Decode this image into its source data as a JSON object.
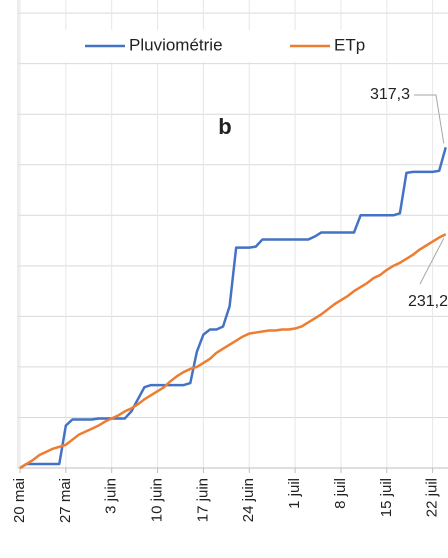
{
  "chart_data": {
    "type": "line",
    "panel_label": "b",
    "categories": [
      "20 mai",
      null,
      null,
      null,
      null,
      null,
      null,
      "27 mai",
      null,
      null,
      null,
      null,
      null,
      null,
      "3 juin",
      null,
      null,
      null,
      null,
      null,
      null,
      "10 juin",
      null,
      null,
      null,
      null,
      null,
      null,
      "17 juin",
      null,
      null,
      null,
      null,
      null,
      null,
      "24 juin",
      null,
      null,
      null,
      null,
      null,
      null,
      "1 juil",
      null,
      null,
      null,
      null,
      null,
      null,
      "8 juil",
      null,
      null,
      null,
      null,
      null,
      null,
      "15 juil",
      null,
      null,
      null,
      null,
      null,
      null,
      "22 juil",
      null,
      null
    ],
    "series": [
      {
        "name": "Pluviométrie",
        "color": "#4472c4",
        "values": [
          0,
          4,
          4,
          4,
          4,
          4,
          4,
          42,
          48,
          48,
          48,
          48,
          49,
          49,
          49,
          49,
          49,
          56,
          68,
          80,
          82,
          82,
          82,
          82,
          82,
          82,
          84,
          115,
          132,
          137,
          137,
          140,
          160,
          218,
          218,
          218,
          219,
          226,
          226,
          226,
          226,
          226,
          226,
          226,
          226,
          229,
          233,
          233,
          233,
          233,
          233,
          233,
          250,
          250,
          250,
          250,
          250,
          250,
          252,
          292,
          293,
          293,
          293,
          293,
          294,
          317.3
        ],
        "value_labels": [
          null,
          null,
          null,
          null,
          null,
          null,
          null,
          null,
          null,
          null,
          null,
          null,
          null,
          null,
          null,
          null,
          null,
          null,
          null,
          null,
          null,
          null,
          null,
          null,
          null,
          null,
          null,
          null,
          null,
          null,
          null,
          null,
          null,
          null,
          null,
          null,
          null,
          null,
          null,
          null,
          null,
          null,
          null,
          null,
          null,
          null,
          null,
          null,
          null,
          null,
          null,
          null,
          null,
          null,
          null,
          null,
          null,
          null,
          null,
          null,
          null,
          null,
          null,
          null,
          null,
          "317,3"
        ]
      },
      {
        "name": "ETp",
        "color": "#ed7d31",
        "values": [
          0,
          4,
          8,
          13,
          16,
          19,
          21,
          23,
          28,
          33,
          36,
          39,
          42,
          46,
          49,
          52,
          56,
          59,
          63,
          68,
          72,
          76,
          80,
          86,
          91,
          95,
          98,
          100,
          104,
          108,
          114,
          118,
          122,
          126,
          130,
          133,
          134,
          135,
          136,
          136,
          137,
          137,
          138,
          140,
          144,
          148,
          152,
          157,
          162,
          166,
          170,
          175,
          179,
          183,
          188,
          191,
          196,
          200,
          203,
          207,
          211,
          216,
          220,
          224,
          228,
          231.2
        ],
        "value_labels": [
          null,
          null,
          null,
          null,
          null,
          null,
          null,
          null,
          null,
          null,
          null,
          null,
          null,
          null,
          null,
          null,
          null,
          null,
          null,
          null,
          null,
          null,
          null,
          null,
          null,
          null,
          null,
          null,
          null,
          null,
          null,
          null,
          null,
          null,
          null,
          null,
          null,
          null,
          null,
          null,
          null,
          null,
          null,
          null,
          null,
          null,
          null,
          null,
          null,
          null,
          null,
          null,
          null,
          null,
          null,
          null,
          null,
          null,
          null,
          null,
          null,
          null,
          null,
          null,
          null,
          "231,2"
        ]
      }
    ],
    "ylim": [
      0,
      463
    ],
    "yticks": [
      0,
      50,
      100,
      150,
      200,
      250,
      300,
      350,
      400,
      450
    ],
    "grid": true,
    "legend": "top"
  }
}
